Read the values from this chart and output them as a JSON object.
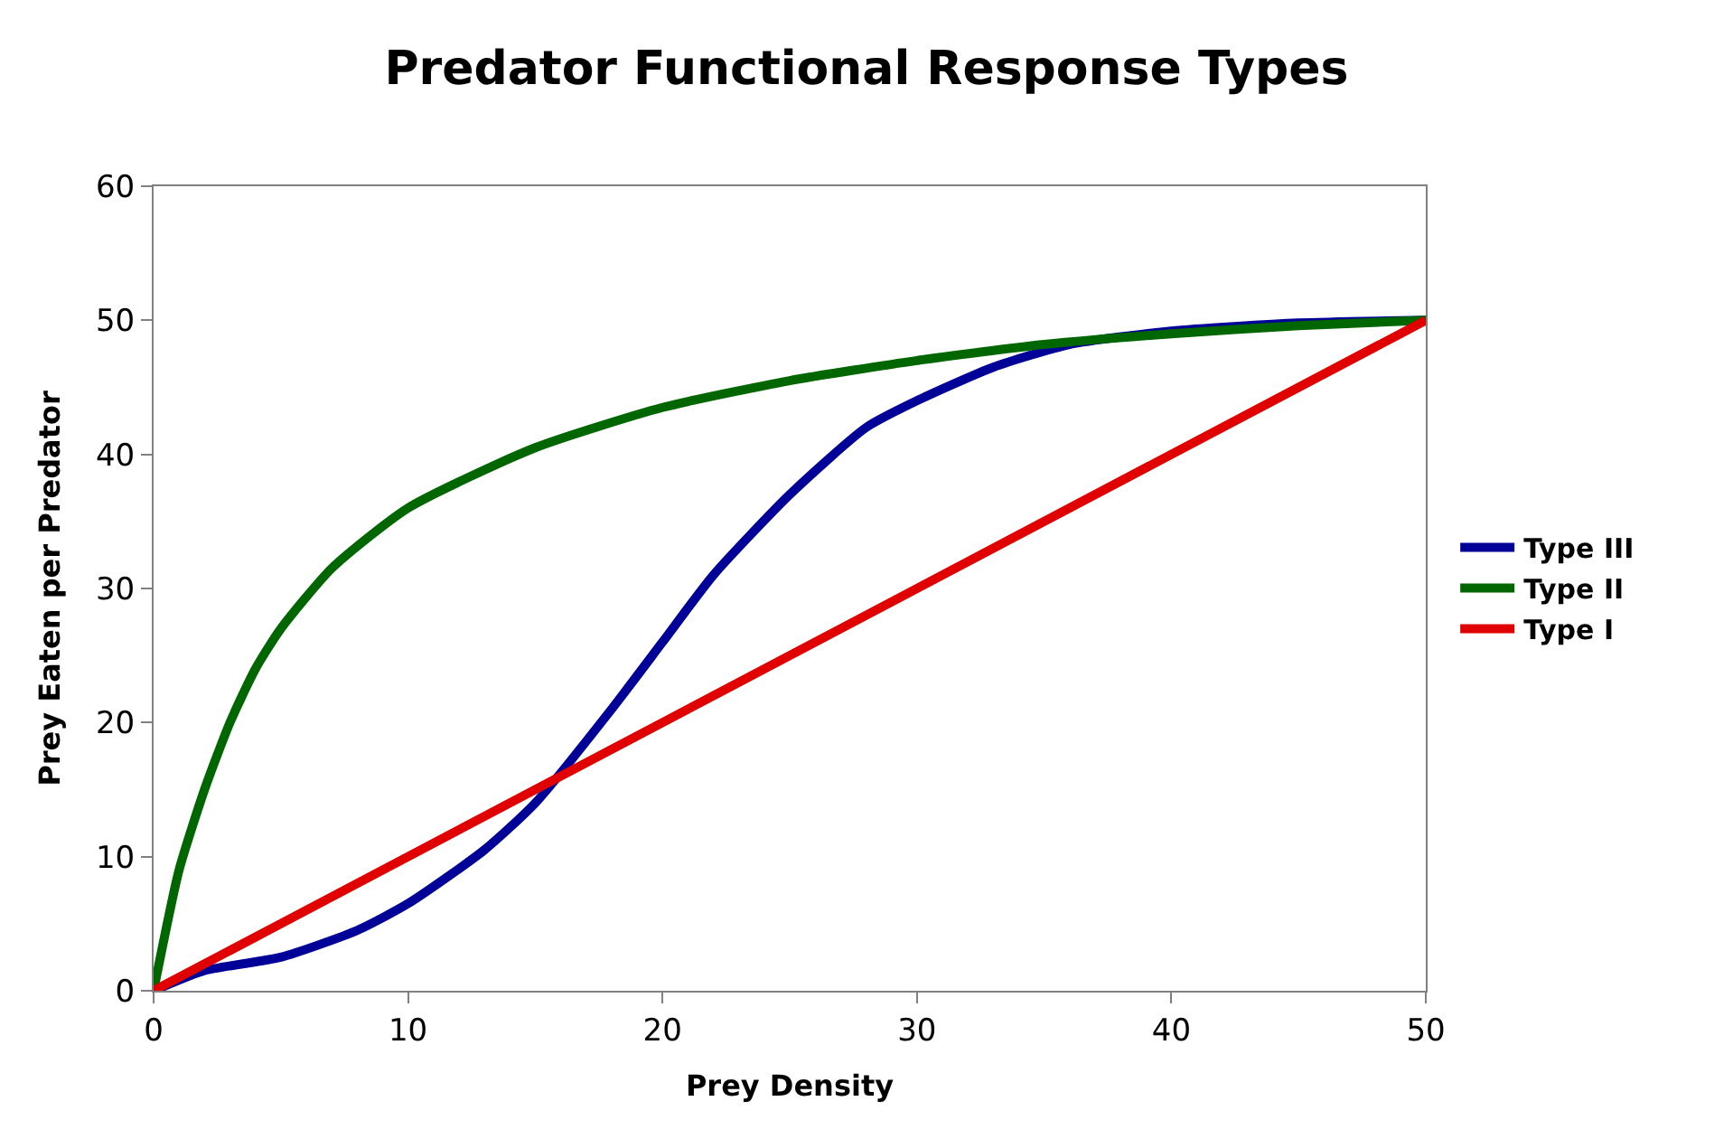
{
  "chart_data": {
    "type": "line",
    "title": "Predator Functional Response Types",
    "xlabel": "Prey Density",
    "ylabel": "Prey Eaten per Predator",
    "xlim": [
      0,
      50
    ],
    "xticks": [
      0,
      10,
      20,
      30,
      40,
      50
    ],
    "ylim": [
      0,
      60
    ],
    "yticks": [
      0,
      10,
      20,
      30,
      40,
      50,
      60
    ],
    "legend": "right",
    "marker": "none",
    "line_style": "solid",
    "series": [
      {
        "name": "Type III",
        "color": "#000099",
        "x": [
          0,
          2,
          5,
          8,
          10,
          13,
          15,
          18,
          20,
          22,
          25,
          28,
          30,
          33,
          36,
          40,
          45,
          50
        ],
        "values": [
          0,
          1.5,
          2.5,
          4.5,
          6.5,
          10.5,
          14,
          21,
          26,
          31,
          37,
          42,
          44,
          46.5,
          48.2,
          49.2,
          49.8,
          50
        ]
      },
      {
        "name": "Type II",
        "color": "#006600",
        "x": [
          0,
          1,
          2,
          3,
          4,
          5,
          7,
          10,
          15,
          20,
          25,
          30,
          35,
          40,
          45,
          50
        ],
        "values": [
          0,
          9,
          15,
          20,
          24,
          27,
          31.5,
          36,
          40.5,
          43.5,
          45.5,
          47,
          48.2,
          49,
          49.6,
          50
        ]
      },
      {
        "name": "Type I",
        "color": "#e00000",
        "x": [
          0,
          50
        ],
        "values": [
          0,
          50
        ]
      }
    ]
  }
}
